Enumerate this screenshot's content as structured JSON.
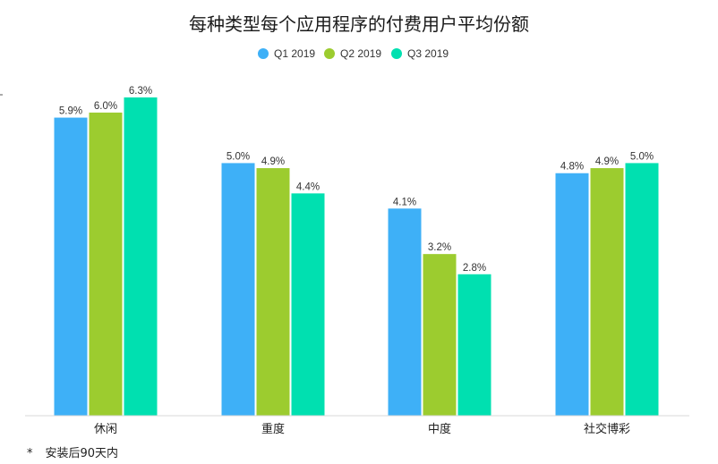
{
  "chart_data": {
    "type": "bar",
    "title": "每种类型每个应用程序的付费用户平均份额",
    "categories": [
      "休闲",
      "重度",
      "中度",
      "社交博彩"
    ],
    "series": [
      {
        "name": "Q1 2019",
        "color": "#3eb0f7",
        "values": [
          5.9,
          5.0,
          4.1,
          4.8
        ]
      },
      {
        "name": "Q2 2019",
        "color": "#9ccc2f",
        "values": [
          6.0,
          4.9,
          3.2,
          4.9
        ]
      },
      {
        "name": "Q3 2019",
        "color": "#00e0b0",
        "values": [
          6.3,
          4.4,
          2.8,
          5.0
        ]
      }
    ],
    "value_suffix": "%",
    "ylim": [
      0,
      6.6
    ],
    "grid": false,
    "legend_position": "top-center"
  },
  "footnote": {
    "marker": "*",
    "text": "安装后90天内"
  }
}
